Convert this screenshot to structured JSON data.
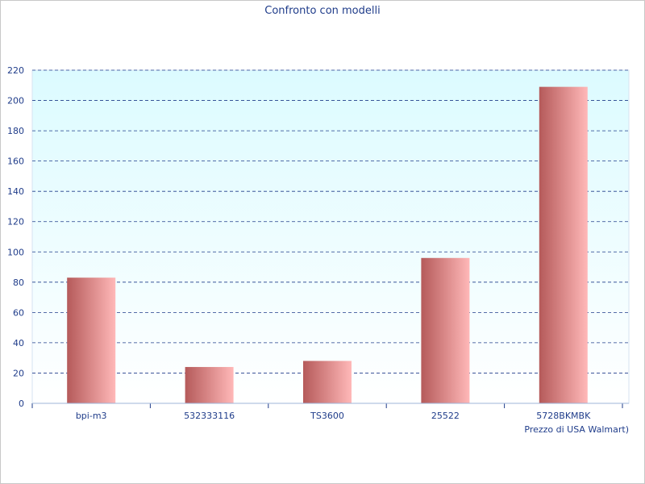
{
  "chart_data": {
    "type": "bar",
    "title": "Confronto con modelli",
    "xlabel": "Prezzo di USA Walmart)",
    "ylabel": "",
    "categories": [
      "bpi-m3",
      "532333116",
      "TS3600",
      "25522",
      "5728BKMBK"
    ],
    "values": [
      83,
      24,
      28,
      96,
      209
    ],
    "ylim": [
      0,
      220
    ],
    "yticks": [
      0,
      20,
      40,
      60,
      80,
      100,
      120,
      140,
      160,
      180,
      200,
      220
    ],
    "grid": true,
    "legend": "none",
    "colors": {
      "bar_dark": "#b55a5a",
      "bar_light": "#ffb8b8",
      "plot_bg_top": "#dcfbff",
      "plot_bg_bottom": "#ffffff",
      "grid": "#1f3c8a",
      "text": "#1f3c8a",
      "axis": "#9fb6d9"
    }
  }
}
